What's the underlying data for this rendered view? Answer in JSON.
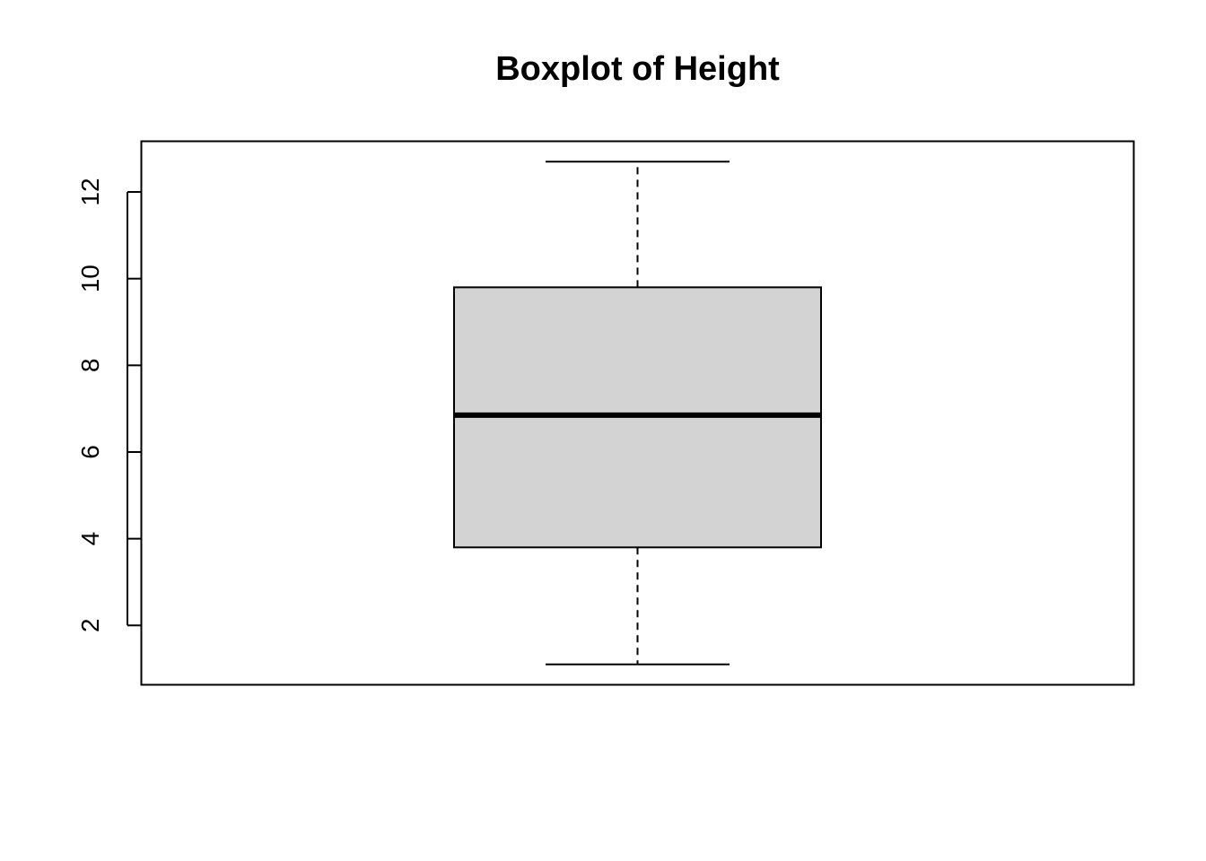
{
  "chart_data": {
    "type": "box",
    "title": "Boxplot of Height",
    "xlabel": "",
    "ylabel": "",
    "ylim": [
      0.63,
      13.17
    ],
    "yticks": [
      2,
      4,
      6,
      8,
      10,
      12
    ],
    "grid": false,
    "colors": {
      "box_fill": "#d3d3d3",
      "stroke": "#000000"
    },
    "series": [
      {
        "whisker_low": 1.1,
        "q1": 3.8,
        "median": 6.85,
        "q3": 9.8,
        "whisker_high": 12.7
      }
    ]
  }
}
